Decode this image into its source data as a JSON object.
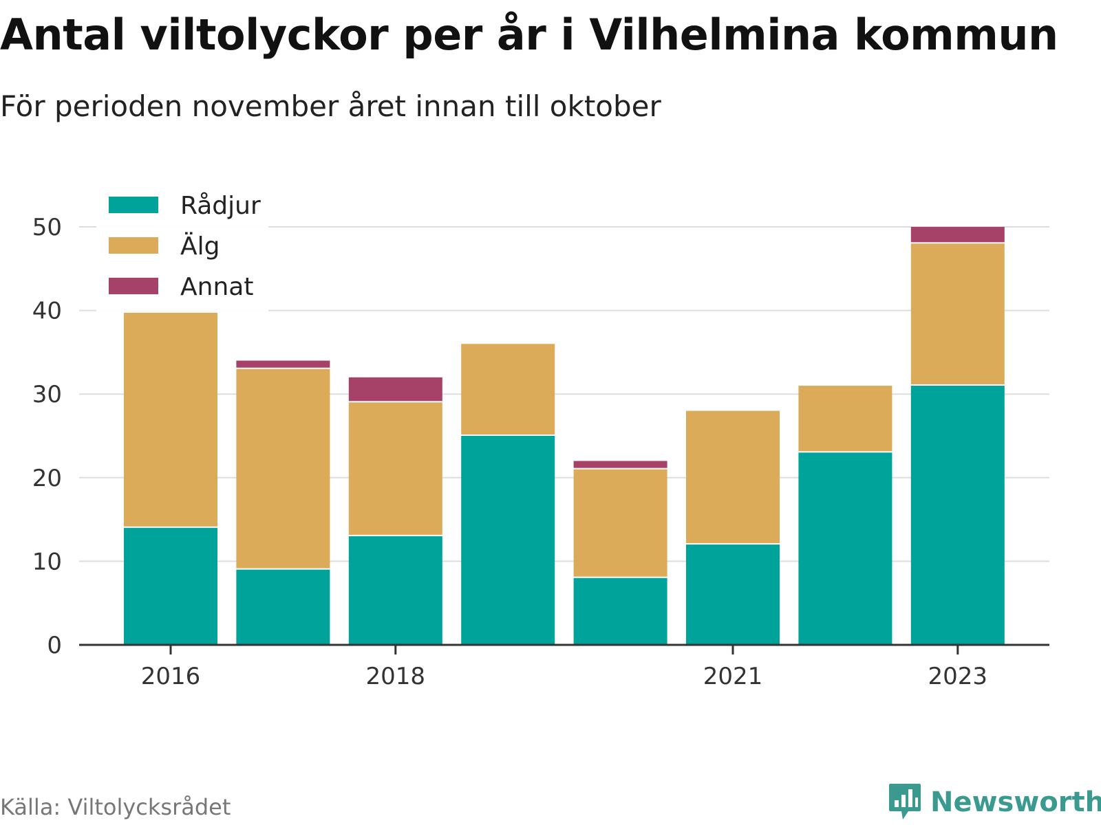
{
  "title": "Antal viltolyckor per år i Vilhelmina kommun",
  "subtitle": "För perioden november året innan till oktober",
  "source": "Källa: Viltolycksrådet",
  "brand": "Newsworthy",
  "colors": {
    "radjur": "#00a39a",
    "alg": "#dbab5a",
    "annat": "#a64168",
    "grid": "#dddddd",
    "axis": "#333333"
  },
  "chart_data": {
    "type": "bar",
    "stacked": true,
    "categories": [
      "2016",
      "2017",
      "2018",
      "2019",
      "2020",
      "2021",
      "2022",
      "2023"
    ],
    "x_tick_labels": [
      "2016",
      "2018",
      "2021",
      "2023"
    ],
    "y_ticks": [
      0,
      10,
      20,
      30,
      40,
      50
    ],
    "ylim": [
      0,
      50
    ],
    "grid": true,
    "legend_position": "top-left",
    "series": [
      {
        "name": "Rådjur",
        "color": "#00a39a",
        "values": [
          14,
          9,
          13,
          25,
          8,
          12,
          23,
          31
        ]
      },
      {
        "name": "Älg",
        "color": "#dbab5a",
        "values": [
          26,
          24,
          16,
          11,
          13,
          16,
          8,
          17
        ]
      },
      {
        "name": "Annat",
        "color": "#a64168",
        "values": [
          0,
          1,
          3,
          0,
          1,
          0,
          0,
          2
        ]
      }
    ]
  }
}
